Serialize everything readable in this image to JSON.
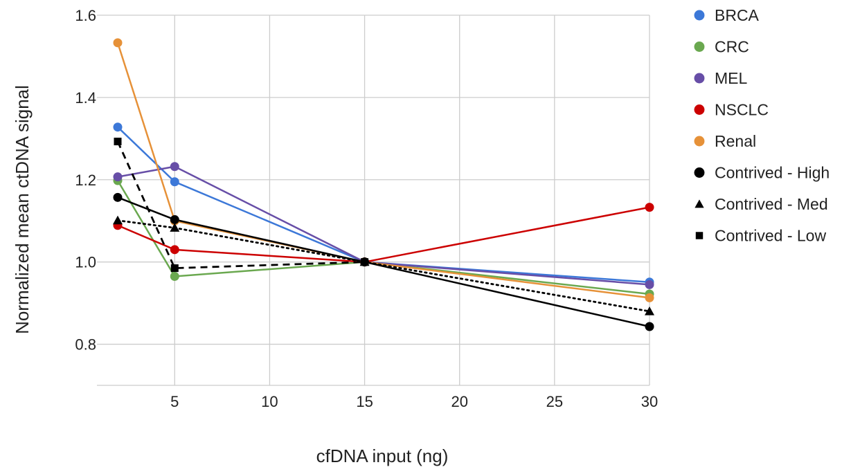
{
  "chart_data": {
    "type": "line",
    "xlabel": "cfDNA input (ng)",
    "ylabel": "Normalized mean ctDNA signal",
    "xlim": [
      2,
      30
    ],
    "ylim": [
      0.7,
      1.6
    ],
    "x_ticks": [
      5,
      10,
      15,
      20,
      25,
      30
    ],
    "y_ticks": [
      0.8,
      1.0,
      1.2,
      1.4,
      1.6
    ],
    "y_tick_labels": [
      "0.8",
      "1.0",
      "1.2",
      "1.4",
      "1.6"
    ],
    "grid": true,
    "legend_position": "right",
    "x": [
      2,
      5,
      15,
      30
    ],
    "series": [
      {
        "name": "BRCA",
        "color": "#3c78d8",
        "marker": "circle",
        "line": "solid",
        "values": [
          1.328,
          1.195,
          1.0,
          0.951
        ]
      },
      {
        "name": "CRC",
        "color": "#6aa84f",
        "marker": "circle",
        "line": "solid",
        "values": [
          1.198,
          0.965,
          1.0,
          0.922
        ]
      },
      {
        "name": "MEL",
        "color": "#674ea7",
        "marker": "circle",
        "line": "solid",
        "values": [
          1.207,
          1.232,
          1.0,
          0.945
        ]
      },
      {
        "name": "NSCLC",
        "color": "#cc0000",
        "marker": "circle",
        "line": "solid",
        "values": [
          1.089,
          1.03,
          1.0,
          1.133
        ]
      },
      {
        "name": "Renal",
        "color": "#e69138",
        "marker": "circle",
        "line": "solid",
        "values": [
          1.533,
          1.1,
          1.0,
          0.913
        ]
      },
      {
        "name": "Contrived - High",
        "color": "#000000",
        "marker": "circle",
        "line": "solid",
        "values": [
          1.157,
          1.103,
          1.0,
          0.843
        ]
      },
      {
        "name": "Contrived - Med",
        "color": "#000000",
        "marker": "triangle",
        "line": "dotted",
        "values": [
          1.101,
          1.083,
          1.0,
          0.88
        ]
      },
      {
        "name": "Contrived - Low",
        "color": "#000000",
        "marker": "square",
        "line": "dashed",
        "values": [
          1.293,
          0.985,
          1.0,
          null
        ]
      }
    ]
  }
}
